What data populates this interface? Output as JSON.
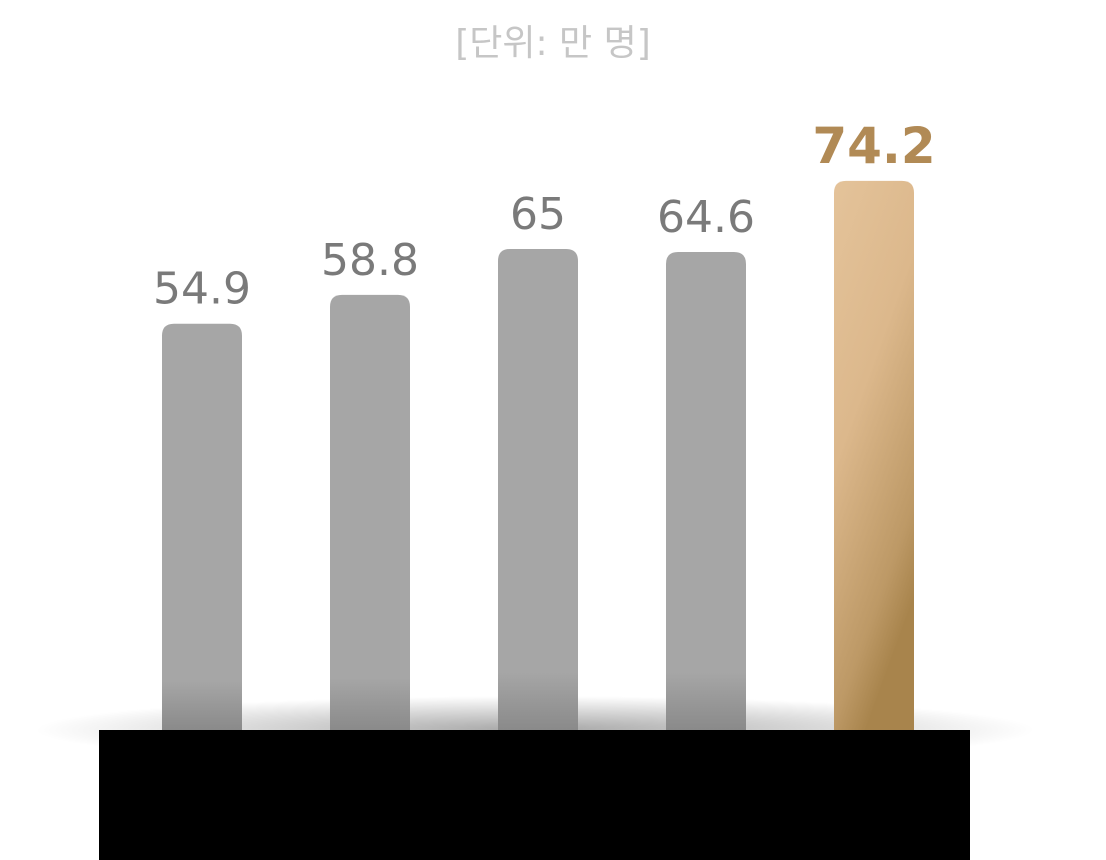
{
  "unit_label": "[단위: 만 명]",
  "chart_data": {
    "type": "bar",
    "categories": [
      "",
      "",
      "",
      "",
      ""
    ],
    "values": [
      54.9,
      58.8,
      65,
      64.6,
      74.2
    ],
    "value_labels": [
      "54.9",
      "58.8",
      "65",
      "64.6",
      "74.2"
    ],
    "highlight_index": 4,
    "ylim": [
      0,
      80
    ],
    "grid": false,
    "colors": {
      "default_bar": "#a6a6a6",
      "default_bar_bottom": "#8a8a8a",
      "highlight_bar_top": "#e4c39a",
      "highlight_bar_bottom": "#a8844c",
      "default_label": "#7a7a7a",
      "highlight_label": "#b18a55",
      "unit_label": "#c6c6c6",
      "base": "#000000"
    }
  }
}
